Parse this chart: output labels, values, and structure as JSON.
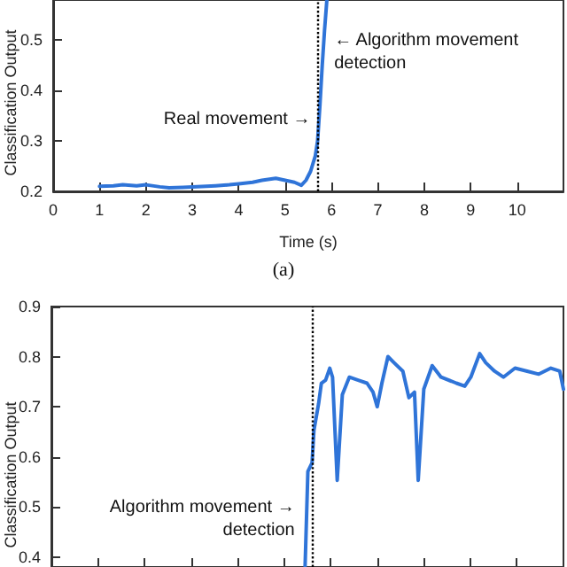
{
  "chart_data": [
    {
      "type": "line",
      "xlabel": "Time (s)",
      "ylabel": "Classification Output",
      "xlim": [
        0,
        11
      ],
      "ylim": [
        0.2,
        0.58
      ],
      "xticks": [
        0,
        1,
        2,
        3,
        4,
        5,
        6,
        7,
        8,
        9,
        10
      ],
      "yticks": [
        0.2,
        0.3,
        0.4,
        0.5
      ],
      "grid": false,
      "marker": "none",
      "line_style": "solid",
      "series": [
        {
          "color": "#2f74d8",
          "x": [
            1,
            1.3,
            1.5,
            1.8,
            2,
            2.3,
            2.5,
            2.8,
            3,
            3.3,
            3.5,
            3.8,
            4,
            4.3,
            4.5,
            4.8,
            5,
            5.2,
            5.35,
            5.45,
            5.55,
            5.65,
            5.7,
            5.75,
            5.8,
            5.85,
            5.9
          ],
          "values": [
            0.21,
            0.211,
            0.213,
            0.211,
            0.213,
            0.209,
            0.207,
            0.208,
            0.209,
            0.21,
            0.211,
            0.213,
            0.215,
            0.218,
            0.222,
            0.226,
            0.222,
            0.218,
            0.212,
            0.222,
            0.24,
            0.27,
            0.3,
            0.37,
            0.45,
            0.52,
            0.58
          ]
        }
      ],
      "ref_lines": [
        {
          "axis": "x",
          "value": 5.7,
          "color": "#000000",
          "line_style": "dotted"
        }
      ],
      "annotations": [
        {
          "text": "Real movement →",
          "x": 5.7,
          "y": 0.345
        },
        {
          "text": "← Algorithm movement\ndetection",
          "x": 5.98,
          "y": 0.5
        },
        "(a)"
      ]
    },
    {
      "type": "line",
      "ylabel": "Classification Output",
      "xlim": [
        0,
        11
      ],
      "ylim": [
        0.38,
        0.9
      ],
      "xticks": [
        0,
        1,
        2,
        3,
        4,
        5,
        6,
        7,
        8,
        9,
        10
      ],
      "yticks": [
        0.4,
        0.5,
        0.6,
        0.7,
        0.8,
        0.9
      ],
      "tick_labels": "y",
      "grid": false,
      "marker": "none",
      "line_style": "solid",
      "series": [
        {
          "color": "#2f74d8",
          "x": [
            5.45,
            5.51,
            5.6,
            5.64,
            5.74,
            5.8,
            5.89,
            5.98,
            6.04,
            6.14,
            6.25,
            6.4,
            6.59,
            6.78,
            6.91,
            7.0,
            7.1,
            7.23,
            7.36,
            7.55,
            7.68,
            7.8,
            7.88,
            8.0,
            8.18,
            8.37,
            8.7,
            8.88,
            9.01,
            9.2,
            9.33,
            9.52,
            9.71,
            9.96,
            10.22,
            10.47,
            10.73,
            10.92,
            11.0
          ],
          "values": [
            0.382,
            0.571,
            0.588,
            0.653,
            0.706,
            0.747,
            0.753,
            0.777,
            0.759,
            0.553,
            0.724,
            0.759,
            0.753,
            0.747,
            0.729,
            0.7,
            0.747,
            0.8,
            0.788,
            0.771,
            0.718,
            0.729,
            0.553,
            0.735,
            0.782,
            0.759,
            0.747,
            0.741,
            0.759,
            0.806,
            0.788,
            0.771,
            0.759,
            0.777,
            0.771,
            0.765,
            0.777,
            0.771,
            0.735
          ]
        }
      ],
      "ref_lines": [
        {
          "axis": "x",
          "value": 5.6,
          "color": "#000000",
          "line_style": "dotted"
        }
      ],
      "annotations": [
        {
          "text": "Algorithm movement →\ndetection",
          "x": 5.38,
          "y": 0.5
        }
      ]
    }
  ]
}
